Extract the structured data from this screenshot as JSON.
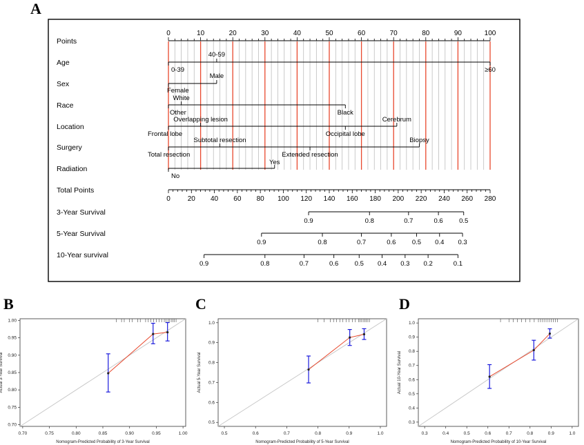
{
  "panels": {
    "a": "A",
    "b": "B",
    "c": "C",
    "d": "D"
  },
  "colors": {
    "red": "#e8472c",
    "blue": "#1a1adc",
    "grid": "#bdbdbd",
    "diag": "#c8c8c8",
    "ink": "#000000"
  },
  "nomogram": {
    "rows": [
      {
        "label": "Points"
      },
      {
        "label": "Age"
      },
      {
        "label": "Sex"
      },
      {
        "label": "Race"
      },
      {
        "label": "Location"
      },
      {
        "label": "Surgery"
      },
      {
        "label": "Radiation"
      },
      {
        "label": "Total Points"
      },
      {
        "label": "3-Year Survival"
      },
      {
        "label": "5-Year Survival"
      },
      {
        "label": "10-Year survival"
      }
    ],
    "points_ticks": [
      "0",
      "10",
      "20",
      "30",
      "40",
      "50",
      "60",
      "70",
      "80",
      "90",
      "100"
    ],
    "age": {
      "top": [
        "40-59"
      ],
      "bottom": [
        "0-39",
        "≥60"
      ]
    },
    "sex": {
      "top": [
        "Male"
      ],
      "bottom": [
        "Female"
      ]
    },
    "race": {
      "top": [
        "White"
      ],
      "bottom": [
        "Other",
        "Black"
      ]
    },
    "location": {
      "top": [
        "Overlapping lesion",
        "Cerebrum"
      ],
      "bottom": [
        "Frontal lobe",
        "Occipital lobe"
      ]
    },
    "surgery": {
      "top": [
        "Subtotal resection",
        "Biopsy"
      ],
      "bottom": [
        "Total resection",
        "Extended resection"
      ]
    },
    "radiation": {
      "top": [
        "Yes"
      ],
      "bottom": [
        "No"
      ]
    },
    "total_ticks": [
      "0",
      "20",
      "40",
      "60",
      "80",
      "100",
      "120",
      "140",
      "160",
      "180",
      "200",
      "220",
      "240",
      "260",
      "280"
    ],
    "surv3": [
      "0.9",
      "0.8",
      "0.7",
      "0.6",
      "0.5"
    ],
    "surv5": [
      "0.9",
      "0.8",
      "0.7",
      "0.6",
      "0.5",
      "0.4",
      "0.3"
    ],
    "surv10": [
      "0.9",
      "0.8",
      "0.7",
      "0.6",
      "0.5",
      "0.4",
      "0.3",
      "0.2",
      "0.1"
    ]
  },
  "chart_data": [
    {
      "type": "nomogram",
      "title": "",
      "points_range": [
        0,
        100
      ],
      "total_points_range": [
        0,
        280
      ],
      "variables": [
        {
          "name": "Age",
          "levels": [
            {
              "level": "0-39",
              "points": 0
            },
            {
              "level": "40-59",
              "points": 15
            },
            {
              "level": "≥60",
              "points": 100
            }
          ]
        },
        {
          "name": "Sex",
          "levels": [
            {
              "level": "Female",
              "points": 0
            },
            {
              "level": "Male",
              "points": 15
            }
          ]
        },
        {
          "name": "Race",
          "levels": [
            {
              "level": "Other",
              "points": 0
            },
            {
              "level": "White",
              "points": 4
            },
            {
              "level": "Black",
              "points": 55
            }
          ]
        },
        {
          "name": "Location",
          "levels": [
            {
              "level": "Frontal lobe",
              "points": 0
            },
            {
              "level": "Overlapping lesion",
              "points": 10
            },
            {
              "level": "Occipital lobe",
              "points": 55
            },
            {
              "level": "Cerebrum",
              "points": 71
            }
          ]
        },
        {
          "name": "Surgery",
          "levels": [
            {
              "level": "Total resection",
              "points": 0
            },
            {
              "level": "Subtotal resection",
              "points": 16
            },
            {
              "level": "Extended resection",
              "points": 44
            },
            {
              "level": "Biopsy",
              "points": 78
            }
          ]
        },
        {
          "name": "Radiation",
          "levels": [
            {
              "level": "No",
              "points": 0
            },
            {
              "level": "Yes",
              "points": 33
            }
          ]
        }
      ],
      "survival_scales": [
        {
          "name": "3-Year Survival",
          "values": [
            {
              "p": 0.9,
              "total": 122
            },
            {
              "p": 0.8,
              "total": 175
            },
            {
              "p": 0.7,
              "total": 209
            },
            {
              "p": 0.6,
              "total": 235
            },
            {
              "p": 0.5,
              "total": 257
            }
          ]
        },
        {
          "name": "5-Year Survival",
          "values": [
            {
              "p": 0.9,
              "total": 81
            },
            {
              "p": 0.8,
              "total": 134
            },
            {
              "p": 0.7,
              "total": 168
            },
            {
              "p": 0.6,
              "total": 194
            },
            {
              "p": 0.5,
              "total": 216
            },
            {
              "p": 0.4,
              "total": 236
            },
            {
              "p": 0.3,
              "total": 256
            }
          ]
        },
        {
          "name": "10-Year survival",
          "values": [
            {
              "p": 0.9,
              "total": 31
            },
            {
              "p": 0.8,
              "total": 84
            },
            {
              "p": 0.7,
              "total": 118
            },
            {
              "p": 0.6,
              "total": 144
            },
            {
              "p": 0.5,
              "total": 166
            },
            {
              "p": 0.4,
              "total": 186
            },
            {
              "p": 0.3,
              "total": 206
            },
            {
              "p": 0.2,
              "total": 226
            },
            {
              "p": 0.1,
              "total": 252
            }
          ]
        }
      ]
    },
    {
      "type": "line",
      "panel": "B",
      "title": "",
      "xlabel": "Nomogram-Predicted Probability of 3-Year Survival",
      "ylabel": "Actual 3-Year Survival",
      "xlim": [
        0.695,
        1.005
      ],
      "ylim": [
        0.695,
        1.005
      ],
      "xticks": [
        "0.70",
        "0.75",
        "0.80",
        "0.85",
        "0.90",
        "0.95",
        "1.00"
      ],
      "yticks": [
        "0.70",
        "0.75",
        "0.80",
        "0.85",
        "0.90",
        "0.95",
        "1.00"
      ],
      "points": [
        {
          "x": 0.86,
          "y": 0.848,
          "lo": 0.794,
          "hi": 0.904
        },
        {
          "x": 0.944,
          "y": 0.961,
          "lo": 0.933,
          "hi": 0.992
        },
        {
          "x": 0.971,
          "y": 0.966,
          "lo": 0.941,
          "hi": 0.994
        }
      ],
      "rug": [
        0.875,
        0.885,
        0.89,
        0.9,
        0.905,
        0.915,
        0.92,
        0.93,
        0.935,
        0.94,
        0.945,
        0.95,
        0.955,
        0.96,
        0.965,
        0.968,
        0.972,
        0.975,
        0.978,
        0.981,
        0.984,
        0.987
      ]
    },
    {
      "type": "line",
      "panel": "C",
      "title": "",
      "xlabel": "Nomogram-Predicted Probability of 5-Year Survival",
      "ylabel": "Actual 5-Year Survival",
      "xlim": [
        0.48,
        1.02
      ],
      "ylim": [
        0.48,
        1.02
      ],
      "xticks": [
        "0.5",
        "0.6",
        "0.7",
        "0.8",
        "0.9",
        "1.0"
      ],
      "yticks": [
        "0.5",
        "0.6",
        "0.7",
        "0.8",
        "0.9",
        "1.0"
      ],
      "points": [
        {
          "x": 0.77,
          "y": 0.765,
          "lo": 0.698,
          "hi": 0.833
        },
        {
          "x": 0.902,
          "y": 0.926,
          "lo": 0.886,
          "hi": 0.966
        },
        {
          "x": 0.948,
          "y": 0.942,
          "lo": 0.916,
          "hi": 0.97
        }
      ],
      "rug": [
        0.8,
        0.82,
        0.84,
        0.85,
        0.86,
        0.87,
        0.88,
        0.89,
        0.9,
        0.91,
        0.92,
        0.93,
        0.935,
        0.94,
        0.945,
        0.95,
        0.955,
        0.96,
        0.965
      ]
    },
    {
      "type": "line",
      "panel": "D",
      "title": "",
      "xlabel": "Nomogram-Predicted Probability of 10-Year Survival",
      "ylabel": "Actual 10-Year Survival",
      "xlim": [
        0.27,
        1.03
      ],
      "ylim": [
        0.27,
        1.03
      ],
      "xticks": [
        "0.3",
        "0.4",
        "0.5",
        "0.6",
        "0.7",
        "0.8",
        "0.9",
        "1.0"
      ],
      "yticks": [
        "0.3",
        "0.4",
        "0.5",
        "0.6",
        "0.7",
        "0.8",
        "0.9",
        "1.0"
      ],
      "points": [
        {
          "x": 0.608,
          "y": 0.621,
          "lo": 0.538,
          "hi": 0.706
        },
        {
          "x": 0.818,
          "y": 0.808,
          "lo": 0.738,
          "hi": 0.878
        },
        {
          "x": 0.894,
          "y": 0.925,
          "lo": 0.893,
          "hi": 0.959
        }
      ],
      "rug": [
        0.66,
        0.7,
        0.72,
        0.74,
        0.76,
        0.78,
        0.8,
        0.82,
        0.84,
        0.85,
        0.86,
        0.87,
        0.88,
        0.89,
        0.9,
        0.91,
        0.92,
        0.93
      ]
    }
  ]
}
